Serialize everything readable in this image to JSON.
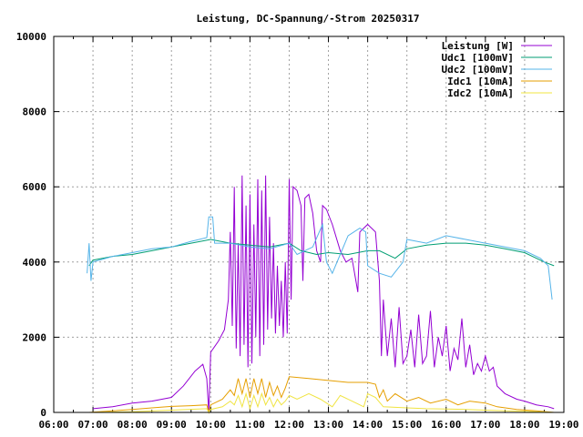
{
  "chart_data": {
    "type": "line",
    "title": "Leistung, DC-Spannung/-Strom 20250317",
    "xlabel": "",
    "ylabel": "",
    "xlim_hours": [
      6,
      19
    ],
    "ylim": [
      0,
      10000
    ],
    "grid": true,
    "legend_position": "top-right",
    "x_tick_labels": [
      "06:00",
      "07:00",
      "08:00",
      "09:00",
      "10:00",
      "11:00",
      "12:00",
      "13:00",
      "14:00",
      "15:00",
      "16:00",
      "17:00",
      "18:00",
      "19:00"
    ],
    "y_tick_labels": [
      "0",
      "2000",
      "4000",
      "6000",
      "8000",
      "10000"
    ],
    "y_ticks": [
      0,
      2000,
      4000,
      6000,
      8000,
      10000
    ],
    "series": [
      {
        "name": "Leistung [W]",
        "color": "#9400d3",
        "points": [
          [
            7.0,
            100
          ],
          [
            7.5,
            150
          ],
          [
            8.0,
            250
          ],
          [
            8.5,
            300
          ],
          [
            9.0,
            400
          ],
          [
            9.3,
            700
          ],
          [
            9.6,
            1100
          ],
          [
            9.8,
            1280
          ],
          [
            9.9,
            900
          ],
          [
            9.95,
            0
          ],
          [
            10.0,
            1600
          ],
          [
            10.2,
            1900
          ],
          [
            10.35,
            2200
          ],
          [
            10.45,
            3000
          ],
          [
            10.5,
            4800
          ],
          [
            10.55,
            2300
          ],
          [
            10.6,
            6000
          ],
          [
            10.65,
            1700
          ],
          [
            10.7,
            4500
          ],
          [
            10.75,
            1500
          ],
          [
            10.8,
            6300
          ],
          [
            10.85,
            1800
          ],
          [
            10.9,
            5500
          ],
          [
            10.95,
            1200
          ],
          [
            11.0,
            5800
          ],
          [
            11.05,
            1300
          ],
          [
            11.1,
            5000
          ],
          [
            11.15,
            2000
          ],
          [
            11.2,
            6200
          ],
          [
            11.25,
            1500
          ],
          [
            11.3,
            5900
          ],
          [
            11.35,
            1800
          ],
          [
            11.4,
            6300
          ],
          [
            11.45,
            2200
          ],
          [
            11.5,
            5200
          ],
          [
            11.55,
            2500
          ],
          [
            11.6,
            4500
          ],
          [
            11.65,
            2100
          ],
          [
            11.7,
            3900
          ],
          [
            11.75,
            2300
          ],
          [
            11.8,
            3500
          ],
          [
            11.85,
            2000
          ],
          [
            11.9,
            4000
          ],
          [
            11.95,
            2100
          ],
          [
            12.0,
            6200
          ],
          [
            12.05,
            3000
          ],
          [
            12.1,
            6000
          ],
          [
            12.2,
            5900
          ],
          [
            12.3,
            5500
          ],
          [
            12.35,
            3500
          ],
          [
            12.4,
            5700
          ],
          [
            12.5,
            5800
          ],
          [
            12.6,
            5300
          ],
          [
            12.7,
            4300
          ],
          [
            12.8,
            4000
          ],
          [
            12.85,
            5500
          ],
          [
            12.95,
            5400
          ],
          [
            13.1,
            5000
          ],
          [
            13.3,
            4300
          ],
          [
            13.45,
            4000
          ],
          [
            13.6,
            4100
          ],
          [
            13.7,
            3500
          ],
          [
            13.75,
            3200
          ],
          [
            13.8,
            4800
          ],
          [
            13.9,
            4900
          ],
          [
            14.0,
            5000
          ],
          [
            14.1,
            4900
          ],
          [
            14.2,
            4800
          ],
          [
            14.3,
            3500
          ],
          [
            14.35,
            1500
          ],
          [
            14.4,
            3000
          ],
          [
            14.5,
            1500
          ],
          [
            14.6,
            2500
          ],
          [
            14.7,
            1200
          ],
          [
            14.8,
            2800
          ],
          [
            14.9,
            1300
          ],
          [
            15.0,
            1500
          ],
          [
            15.1,
            2200
          ],
          [
            15.2,
            1200
          ],
          [
            15.3,
            2600
          ],
          [
            15.4,
            1300
          ],
          [
            15.5,
            1500
          ],
          [
            15.6,
            2700
          ],
          [
            15.7,
            1200
          ],
          [
            15.8,
            2000
          ],
          [
            15.9,
            1500
          ],
          [
            16.0,
            2300
          ],
          [
            16.1,
            1100
          ],
          [
            16.2,
            1700
          ],
          [
            16.3,
            1400
          ],
          [
            16.4,
            2500
          ],
          [
            16.5,
            1200
          ],
          [
            16.6,
            1800
          ],
          [
            16.7,
            1000
          ],
          [
            16.8,
            1300
          ],
          [
            16.9,
            1100
          ],
          [
            17.0,
            1500
          ],
          [
            17.1,
            1100
          ],
          [
            17.2,
            1200
          ],
          [
            17.3,
            700
          ],
          [
            17.5,
            500
          ],
          [
            17.8,
            350
          ],
          [
            18.0,
            300
          ],
          [
            18.3,
            200
          ],
          [
            18.6,
            150
          ],
          [
            18.75,
            100
          ]
        ]
      },
      {
        "name": "Udc1 [100mV]",
        "color": "#009e73",
        "points": [
          [
            6.9,
            3900
          ],
          [
            7.0,
            4050
          ],
          [
            7.5,
            4150
          ],
          [
            8.0,
            4200
          ],
          [
            8.5,
            4300
          ],
          [
            9.0,
            4400
          ],
          [
            9.5,
            4500
          ],
          [
            10.0,
            4600
          ],
          [
            10.5,
            4500
          ],
          [
            11.0,
            4450
          ],
          [
            11.5,
            4400
          ],
          [
            12.0,
            4500
          ],
          [
            12.3,
            4300
          ],
          [
            12.7,
            4200
          ],
          [
            13.0,
            4250
          ],
          [
            13.5,
            4200
          ],
          [
            14.0,
            4300
          ],
          [
            14.3,
            4300
          ],
          [
            14.7,
            4100
          ],
          [
            15.0,
            4350
          ],
          [
            15.5,
            4450
          ],
          [
            16.0,
            4500
          ],
          [
            16.5,
            4500
          ],
          [
            17.0,
            4450
          ],
          [
            17.5,
            4350
          ],
          [
            18.0,
            4250
          ],
          [
            18.5,
            4000
          ],
          [
            18.75,
            3900
          ]
        ]
      },
      {
        "name": "Udc2 [100mV]",
        "color": "#56b4e9",
        "points": [
          [
            6.85,
            3700
          ],
          [
            6.9,
            4500
          ],
          [
            6.95,
            3500
          ],
          [
            7.0,
            4000
          ],
          [
            7.5,
            4150
          ],
          [
            8.0,
            4250
          ],
          [
            8.5,
            4350
          ],
          [
            9.0,
            4400
          ],
          [
            9.5,
            4550
          ],
          [
            9.9,
            4650
          ],
          [
            9.95,
            5200
          ],
          [
            10.05,
            5200
          ],
          [
            10.1,
            4500
          ],
          [
            10.5,
            4500
          ],
          [
            11.0,
            4400
          ],
          [
            11.5,
            4350
          ],
          [
            12.0,
            4500
          ],
          [
            12.2,
            4200
          ],
          [
            12.6,
            4400
          ],
          [
            12.85,
            5000
          ],
          [
            12.95,
            4000
          ],
          [
            13.1,
            3700
          ],
          [
            13.3,
            4200
          ],
          [
            13.5,
            4700
          ],
          [
            13.8,
            4900
          ],
          [
            13.95,
            4800
          ],
          [
            14.0,
            3900
          ],
          [
            14.3,
            3700
          ],
          [
            14.6,
            3600
          ],
          [
            14.9,
            4000
          ],
          [
            15.0,
            4600
          ],
          [
            15.5,
            4500
          ],
          [
            16.0,
            4700
          ],
          [
            16.5,
            4600
          ],
          [
            17.0,
            4500
          ],
          [
            17.5,
            4400
          ],
          [
            18.0,
            4300
          ],
          [
            18.4,
            4100
          ],
          [
            18.6,
            3900
          ],
          [
            18.7,
            3000
          ]
        ]
      },
      {
        "name": "Idc1 [10mA]",
        "color": "#e69f00",
        "points": [
          [
            6.9,
            0
          ],
          [
            7.5,
            40
          ],
          [
            8.0,
            80
          ],
          [
            8.5,
            120
          ],
          [
            9.0,
            160
          ],
          [
            9.5,
            180
          ],
          [
            9.9,
            200
          ],
          [
            9.95,
            0
          ],
          [
            10.0,
            200
          ],
          [
            10.3,
            350
          ],
          [
            10.5,
            600
          ],
          [
            10.6,
            450
          ],
          [
            10.7,
            900
          ],
          [
            10.8,
            500
          ],
          [
            10.9,
            900
          ],
          [
            11.0,
            400
          ],
          [
            11.1,
            900
          ],
          [
            11.2,
            500
          ],
          [
            11.3,
            900
          ],
          [
            11.4,
            400
          ],
          [
            11.5,
            800
          ],
          [
            11.6,
            450
          ],
          [
            11.7,
            700
          ],
          [
            11.8,
            400
          ],
          [
            11.9,
            650
          ],
          [
            12.0,
            950
          ],
          [
            12.5,
            900
          ],
          [
            13.0,
            850
          ],
          [
            13.5,
            800
          ],
          [
            14.0,
            800
          ],
          [
            14.2,
            750
          ],
          [
            14.3,
            400
          ],
          [
            14.4,
            600
          ],
          [
            14.5,
            300
          ],
          [
            14.7,
            500
          ],
          [
            15.0,
            300
          ],
          [
            15.3,
            400
          ],
          [
            15.6,
            250
          ],
          [
            16.0,
            350
          ],
          [
            16.3,
            200
          ],
          [
            16.6,
            300
          ],
          [
            17.0,
            250
          ],
          [
            17.3,
            150
          ],
          [
            17.8,
            80
          ],
          [
            18.3,
            40
          ],
          [
            18.75,
            0
          ]
        ]
      },
      {
        "name": "Idc2 [10mA]",
        "color": "#f0e442",
        "points": [
          [
            6.9,
            0
          ],
          [
            8.0,
            20
          ],
          [
            9.0,
            60
          ],
          [
            9.9,
            100
          ],
          [
            9.95,
            0
          ],
          [
            10.0,
            80
          ],
          [
            10.3,
            150
          ],
          [
            10.5,
            300
          ],
          [
            10.6,
            200
          ],
          [
            10.7,
            450
          ],
          [
            10.8,
            150
          ],
          [
            10.9,
            500
          ],
          [
            11.0,
            100
          ],
          [
            11.1,
            450
          ],
          [
            11.2,
            150
          ],
          [
            11.3,
            500
          ],
          [
            11.4,
            200
          ],
          [
            11.5,
            400
          ],
          [
            11.6,
            150
          ],
          [
            11.7,
            350
          ],
          [
            11.8,
            200
          ],
          [
            11.9,
            300
          ],
          [
            12.0,
            450
          ],
          [
            12.2,
            350
          ],
          [
            12.5,
            500
          ],
          [
            12.8,
            350
          ],
          [
            13.1,
            150
          ],
          [
            13.3,
            450
          ],
          [
            13.6,
            300
          ],
          [
            13.9,
            150
          ],
          [
            14.0,
            500
          ],
          [
            14.2,
            400
          ],
          [
            14.4,
            150
          ],
          [
            15.0,
            120
          ],
          [
            15.5,
            100
          ],
          [
            16.0,
            90
          ],
          [
            16.5,
            80
          ],
          [
            17.0,
            60
          ],
          [
            17.5,
            40
          ],
          [
            18.0,
            30
          ],
          [
            18.5,
            10
          ],
          [
            18.75,
            0
          ]
        ]
      }
    ]
  }
}
